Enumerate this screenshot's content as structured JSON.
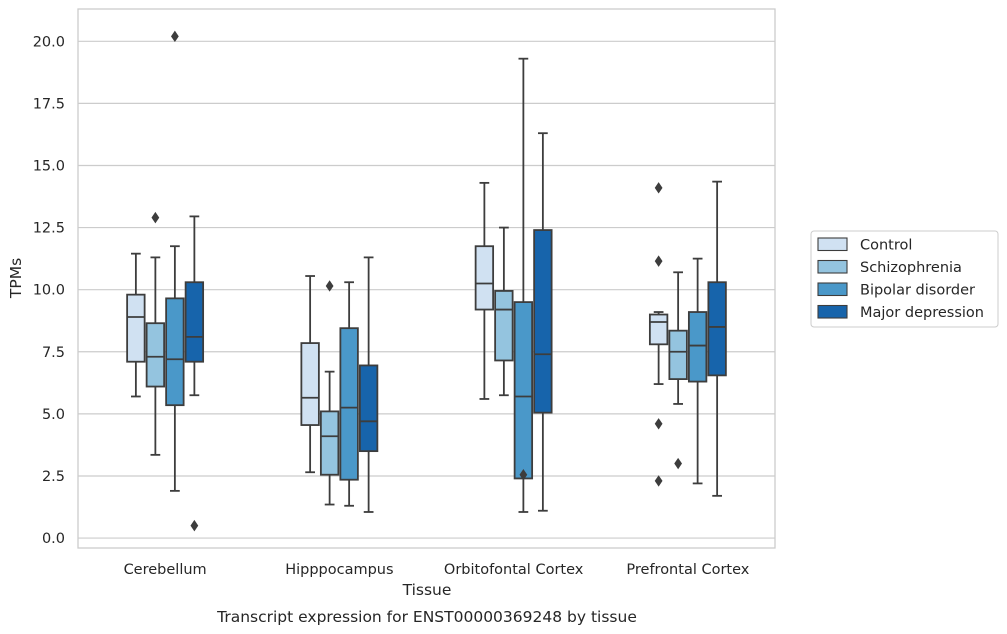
{
  "chart_data": {
    "type": "box",
    "title": "",
    "caption": "Transcript expression for ENST00000369248 by tissue",
    "xlabel": "Tissue",
    "ylabel": "TPMs",
    "ylim": [
      -0.4,
      21.3
    ],
    "yticks": [
      0.0,
      2.5,
      5.0,
      7.5,
      10.0,
      12.5,
      15.0,
      17.5,
      20.0
    ],
    "ytick_labels": [
      "0.0",
      "2.5",
      "5.0",
      "7.5",
      "10.0",
      "12.5",
      "15.0",
      "17.5",
      "20.0"
    ],
    "grid": "horizontal",
    "legend_position": "outside-right",
    "categories": [
      "Cerebellum",
      "Hipppocampus",
      "Orbitofontal Cortex",
      "Prefrontal Cortex"
    ],
    "series": [
      {
        "name": "Control",
        "color": "#d0e1f2",
        "boxes": [
          {
            "whislo": 5.7,
            "q1": 7.1,
            "med": 8.9,
            "q3": 9.8,
            "whishi": 11.45,
            "fliers": []
          },
          {
            "whislo": 2.65,
            "q1": 4.55,
            "med": 5.65,
            "q3": 7.85,
            "whishi": 10.55,
            "fliers": []
          },
          {
            "whislo": 5.6,
            "q1": 9.2,
            "med": 10.25,
            "q3": 11.75,
            "whishi": 14.3,
            "fliers": []
          },
          {
            "whislo": 6.2,
            "q1": 7.8,
            "med": 8.7,
            "q3": 9.0,
            "whishi": 9.1,
            "fliers": [
              14.1,
              11.15,
              4.6,
              2.3
            ]
          }
        ]
      },
      {
        "name": "Schizophrenia",
        "color": "#94c4df",
        "boxes": [
          {
            "whislo": 3.35,
            "q1": 6.1,
            "med": 7.3,
            "q3": 8.65,
            "whishi": 11.3,
            "fliers": [
              12.9
            ]
          },
          {
            "whislo": 1.35,
            "q1": 2.55,
            "med": 4.1,
            "q3": 5.1,
            "whishi": 6.7,
            "fliers": [
              10.15
            ]
          },
          {
            "whislo": 5.75,
            "q1": 7.15,
            "med": 9.2,
            "q3": 9.95,
            "whishi": 12.5,
            "fliers": []
          },
          {
            "whislo": 5.4,
            "q1": 6.4,
            "med": 7.5,
            "q3": 8.35,
            "whishi": 10.7,
            "fliers": [
              3.0
            ]
          }
        ]
      },
      {
        "name": "Bipolar disorder",
        "color": "#4a98c9",
        "boxes": [
          {
            "whislo": 1.9,
            "q1": 5.35,
            "med": 7.2,
            "q3": 9.65,
            "whishi": 11.75,
            "fliers": [
              20.2
            ]
          },
          {
            "whislo": 1.3,
            "q1": 2.35,
            "med": 5.25,
            "q3": 8.45,
            "whishi": 10.3,
            "fliers": []
          },
          {
            "whislo": 1.05,
            "q1": 2.4,
            "med": 5.7,
            "q3": 9.5,
            "whishi": 19.3,
            "fliers": [
              2.55
            ]
          },
          {
            "whislo": 2.2,
            "q1": 6.3,
            "med": 7.75,
            "q3": 9.1,
            "whishi": 11.25,
            "fliers": []
          }
        ]
      },
      {
        "name": "Major depression",
        "color": "#1764ab",
        "boxes": [
          {
            "whislo": 5.75,
            "q1": 7.1,
            "med": 8.1,
            "q3": 10.3,
            "whishi": 12.95,
            "fliers": [
              0.5
            ]
          },
          {
            "whislo": 1.05,
            "q1": 3.5,
            "med": 4.7,
            "q3": 6.95,
            "whishi": 11.3,
            "fliers": []
          },
          {
            "whislo": 1.1,
            "q1": 5.05,
            "med": 7.4,
            "q3": 12.4,
            "whishi": 16.3,
            "fliers": []
          },
          {
            "whislo": 1.7,
            "q1": 6.55,
            "med": 8.5,
            "q3": 10.3,
            "whishi": 14.35,
            "fliers": []
          }
        ]
      }
    ],
    "style": {
      "line_color": "#3d3d3d",
      "grid_color": "#cccccc",
      "spine_color": "#cccccc"
    }
  }
}
